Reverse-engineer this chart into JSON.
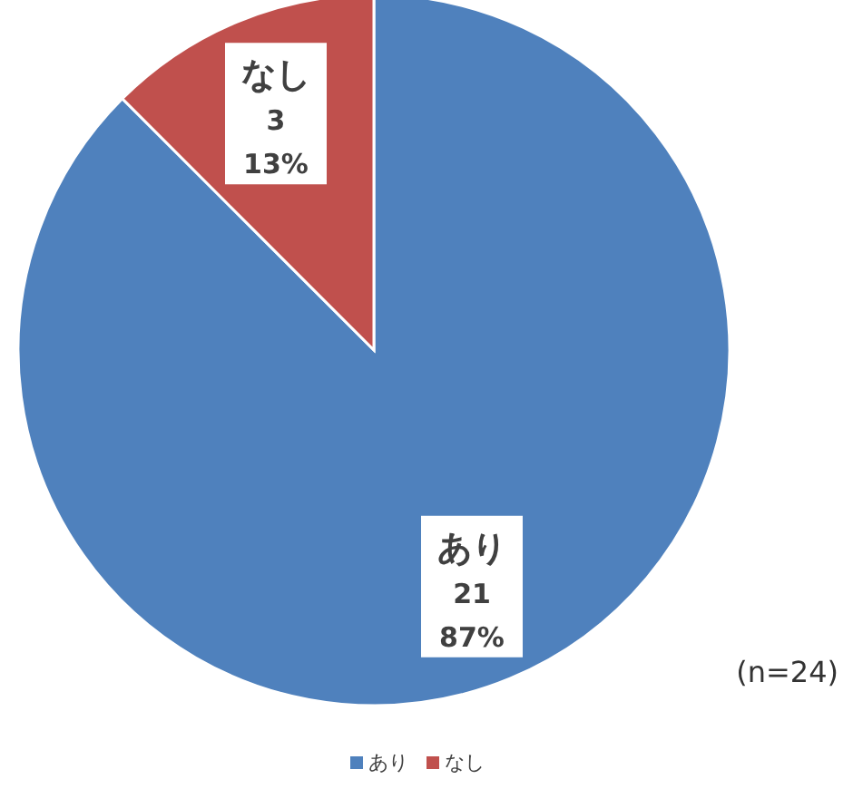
{
  "chart_data": {
    "type": "pie",
    "categories": [
      "あり",
      "なし"
    ],
    "values": [
      21,
      3
    ],
    "colors": [
      "#4f81bd",
      "#c0504d"
    ],
    "value_labels": [
      "21\n87%",
      "3\n13%"
    ],
    "legend": "bottom",
    "annotations": [
      "(n=24)"
    ]
  }
}
